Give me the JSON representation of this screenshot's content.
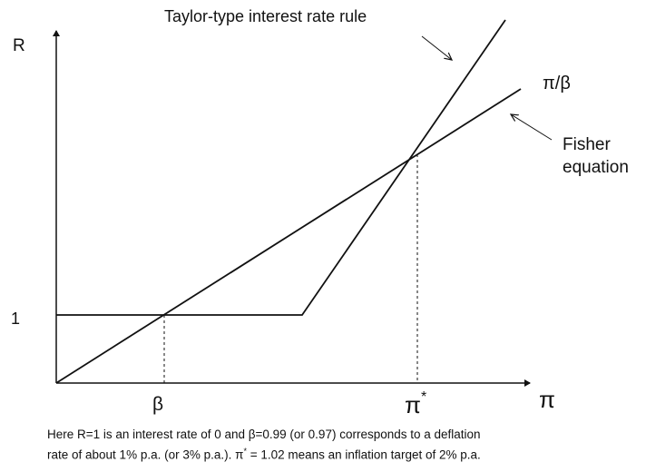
{
  "labels": {
    "y_axis": "R",
    "x_axis": "π",
    "y_tick": "1",
    "beta_tick": "β",
    "pi_star_tick": "π",
    "pi_star_superscript": "*",
    "taylor_rule": "Taylor-type interest rate rule",
    "pi_over_beta": "π/β",
    "fisher_line1": "Fisher",
    "fisher_line2": "equation"
  },
  "caption": {
    "line1": "Here R=1 is an interest rate of 0 and β=0.99 (or 0.97) corresponds to a deflation",
    "line2_part1": "rate of  about 1% p.a. (or 3% p.a.). π",
    "line2_sup": "*",
    "line2_part2": " = 1.02 means an inflation target of 2% p.a."
  },
  "colors": {
    "ink": "#111111",
    "background": "#ffffff"
  }
}
